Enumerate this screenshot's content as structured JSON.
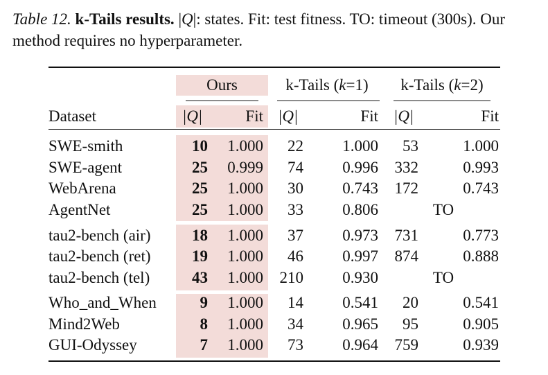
{
  "caption": {
    "label": "Table 12.",
    "title": "k-Tails results.",
    "text1": " |",
    "q": "Q",
    "text2": "|: states. Fit: test fitness. TO: timeout (300s). Our method requires no hyperparameter."
  },
  "table": {
    "group_headers": [
      "Ours",
      "k-Tails (",
      "k",
      "=1)",
      "k-Tails (",
      "k",
      "=2)"
    ],
    "col_dataset": "Dataset",
    "col_q": "|Q|",
    "col_fit": "Fit",
    "rows": [
      {
        "dataset": "SWE-smith",
        "ours_q": "10",
        "ours_fit": "1.000",
        "k1_q": "22",
        "k1_fit": "1.000",
        "k2_q": "53",
        "k2_fit": "1.000"
      },
      {
        "dataset": "SWE-agent",
        "ours_q": "25",
        "ours_fit": "0.999",
        "k1_q": "74",
        "k1_fit": "0.996",
        "k2_q": "332",
        "k2_fit": "0.993"
      },
      {
        "dataset": "WebArena",
        "ours_q": "25",
        "ours_fit": "1.000",
        "k1_q": "30",
        "k1_fit": "0.743",
        "k2_q": "172",
        "k2_fit": "0.743"
      },
      {
        "dataset": "AgentNet",
        "ours_q": "25",
        "ours_fit": "1.000",
        "k1_q": "33",
        "k1_fit": "0.806",
        "k2_to": "TO"
      },
      {
        "dataset": "tau2-bench (air)",
        "ours_q": "18",
        "ours_fit": "1.000",
        "k1_q": "37",
        "k1_fit": "0.973",
        "k2_q": "731",
        "k2_fit": "0.773"
      },
      {
        "dataset": "tau2-bench (ret)",
        "ours_q": "19",
        "ours_fit": "1.000",
        "k1_q": "46",
        "k1_fit": "0.997",
        "k2_q": "874",
        "k2_fit": "0.888"
      },
      {
        "dataset": "tau2-bench (tel)",
        "ours_q": "43",
        "ours_fit": "1.000",
        "k1_q": "210",
        "k1_fit": "0.930",
        "k2_to": "TO"
      },
      {
        "dataset": "Who_and_When",
        "ours_q": "9",
        "ours_fit": "1.000",
        "k1_q": "14",
        "k1_fit": "0.541",
        "k2_q": "20",
        "k2_fit": "0.541"
      },
      {
        "dataset": "Mind2Web",
        "ours_q": "8",
        "ours_fit": "1.000",
        "k1_q": "34",
        "k1_fit": "0.965",
        "k2_q": "95",
        "k2_fit": "0.905"
      },
      {
        "dataset": "GUI-Odyssey",
        "ours_q": "7",
        "ours_fit": "1.000",
        "k1_q": "73",
        "k1_fit": "0.964",
        "k2_q": "759",
        "k2_fit": "0.939"
      }
    ]
  }
}
